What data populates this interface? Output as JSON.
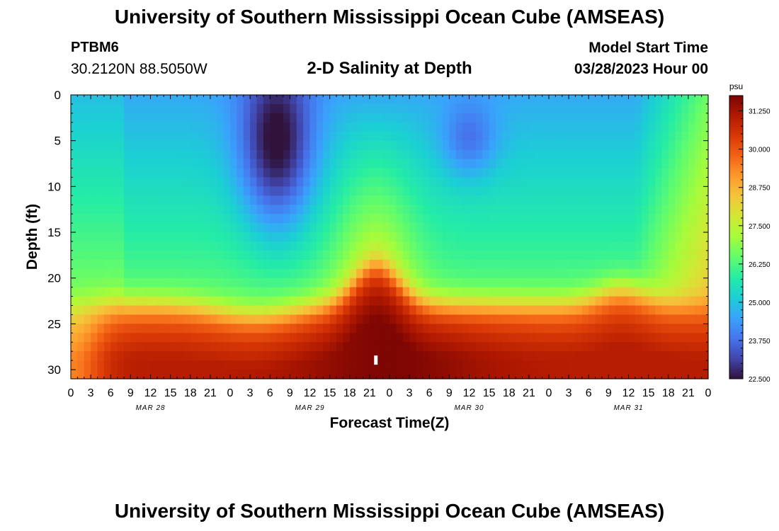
{
  "header": {
    "title": "University of Southern Mississippi Ocean Cube (AMSEAS)",
    "station": "PTBM6",
    "coords": "30.2120N  88.5050W",
    "subtitle": "2-D Salinity at Depth",
    "model_start_label": "Model Start Time",
    "model_start_value": "03/28/2023 Hour 00"
  },
  "footer": {
    "title": "University of Southern Mississippi Ocean Cube (AMSEAS)"
  },
  "chart_data": {
    "type": "heatmap",
    "title": "2-D Salinity at Depth",
    "xlabel": "Forecast Time(Z)",
    "ylabel": "Depth (ft)",
    "x_ticks": [
      "0",
      "3",
      "6",
      "9",
      "12",
      "15",
      "18",
      "21",
      "0",
      "3",
      "6",
      "9",
      "12",
      "15",
      "18",
      "21",
      "0",
      "3",
      "6",
      "9",
      "12",
      "15",
      "18",
      "21",
      "0",
      "3",
      "6",
      "9",
      "12",
      "15",
      "18",
      "21",
      "0"
    ],
    "xlim": [
      0,
      96
    ],
    "date_labels": [
      {
        "label": "MAR 28",
        "hour": 12
      },
      {
        "label": "MAR 29",
        "hour": 36
      },
      {
        "label": "MAR 30",
        "hour": 60
      },
      {
        "label": "MAR 31",
        "hour": 84
      }
    ],
    "y_ticks": [
      0,
      5,
      10,
      15,
      20,
      25,
      30
    ],
    "ylim": [
      0,
      31
    ],
    "colorbar": {
      "unit": "psu",
      "range": [
        22.5,
        31.75
      ],
      "ticks": [
        "31.250",
        "30.000",
        "28.750",
        "27.500",
        "26.250",
        "25.000",
        "23.750",
        "22.500"
      ],
      "tick_values": [
        31.25,
        30.0,
        28.75,
        27.5,
        26.25,
        25.0,
        23.75,
        22.5
      ]
    },
    "field_description": "Salinity (psu) vs forecast hour (x) and depth in ft (y); surface layer low salinity (~24-26 psu) with a minimum near hour 30 at 5 ft, bottom layer high salinity (~30-31.5 psu) below ~22 ft, peak near hour 48.",
    "marker": {
      "hour": 46,
      "depth": 29
    }
  },
  "colors": {
    "scale": [
      "#30123b",
      "#4145ab",
      "#4675ed",
      "#39a2fc",
      "#1bcfd4",
      "#24eca6",
      "#61fc6c",
      "#a4fc3b",
      "#d1e834",
      "#f3c63a",
      "#fe9b2d",
      "#f36315",
      "#d93806",
      "#b11901",
      "#7a0403"
    ]
  }
}
